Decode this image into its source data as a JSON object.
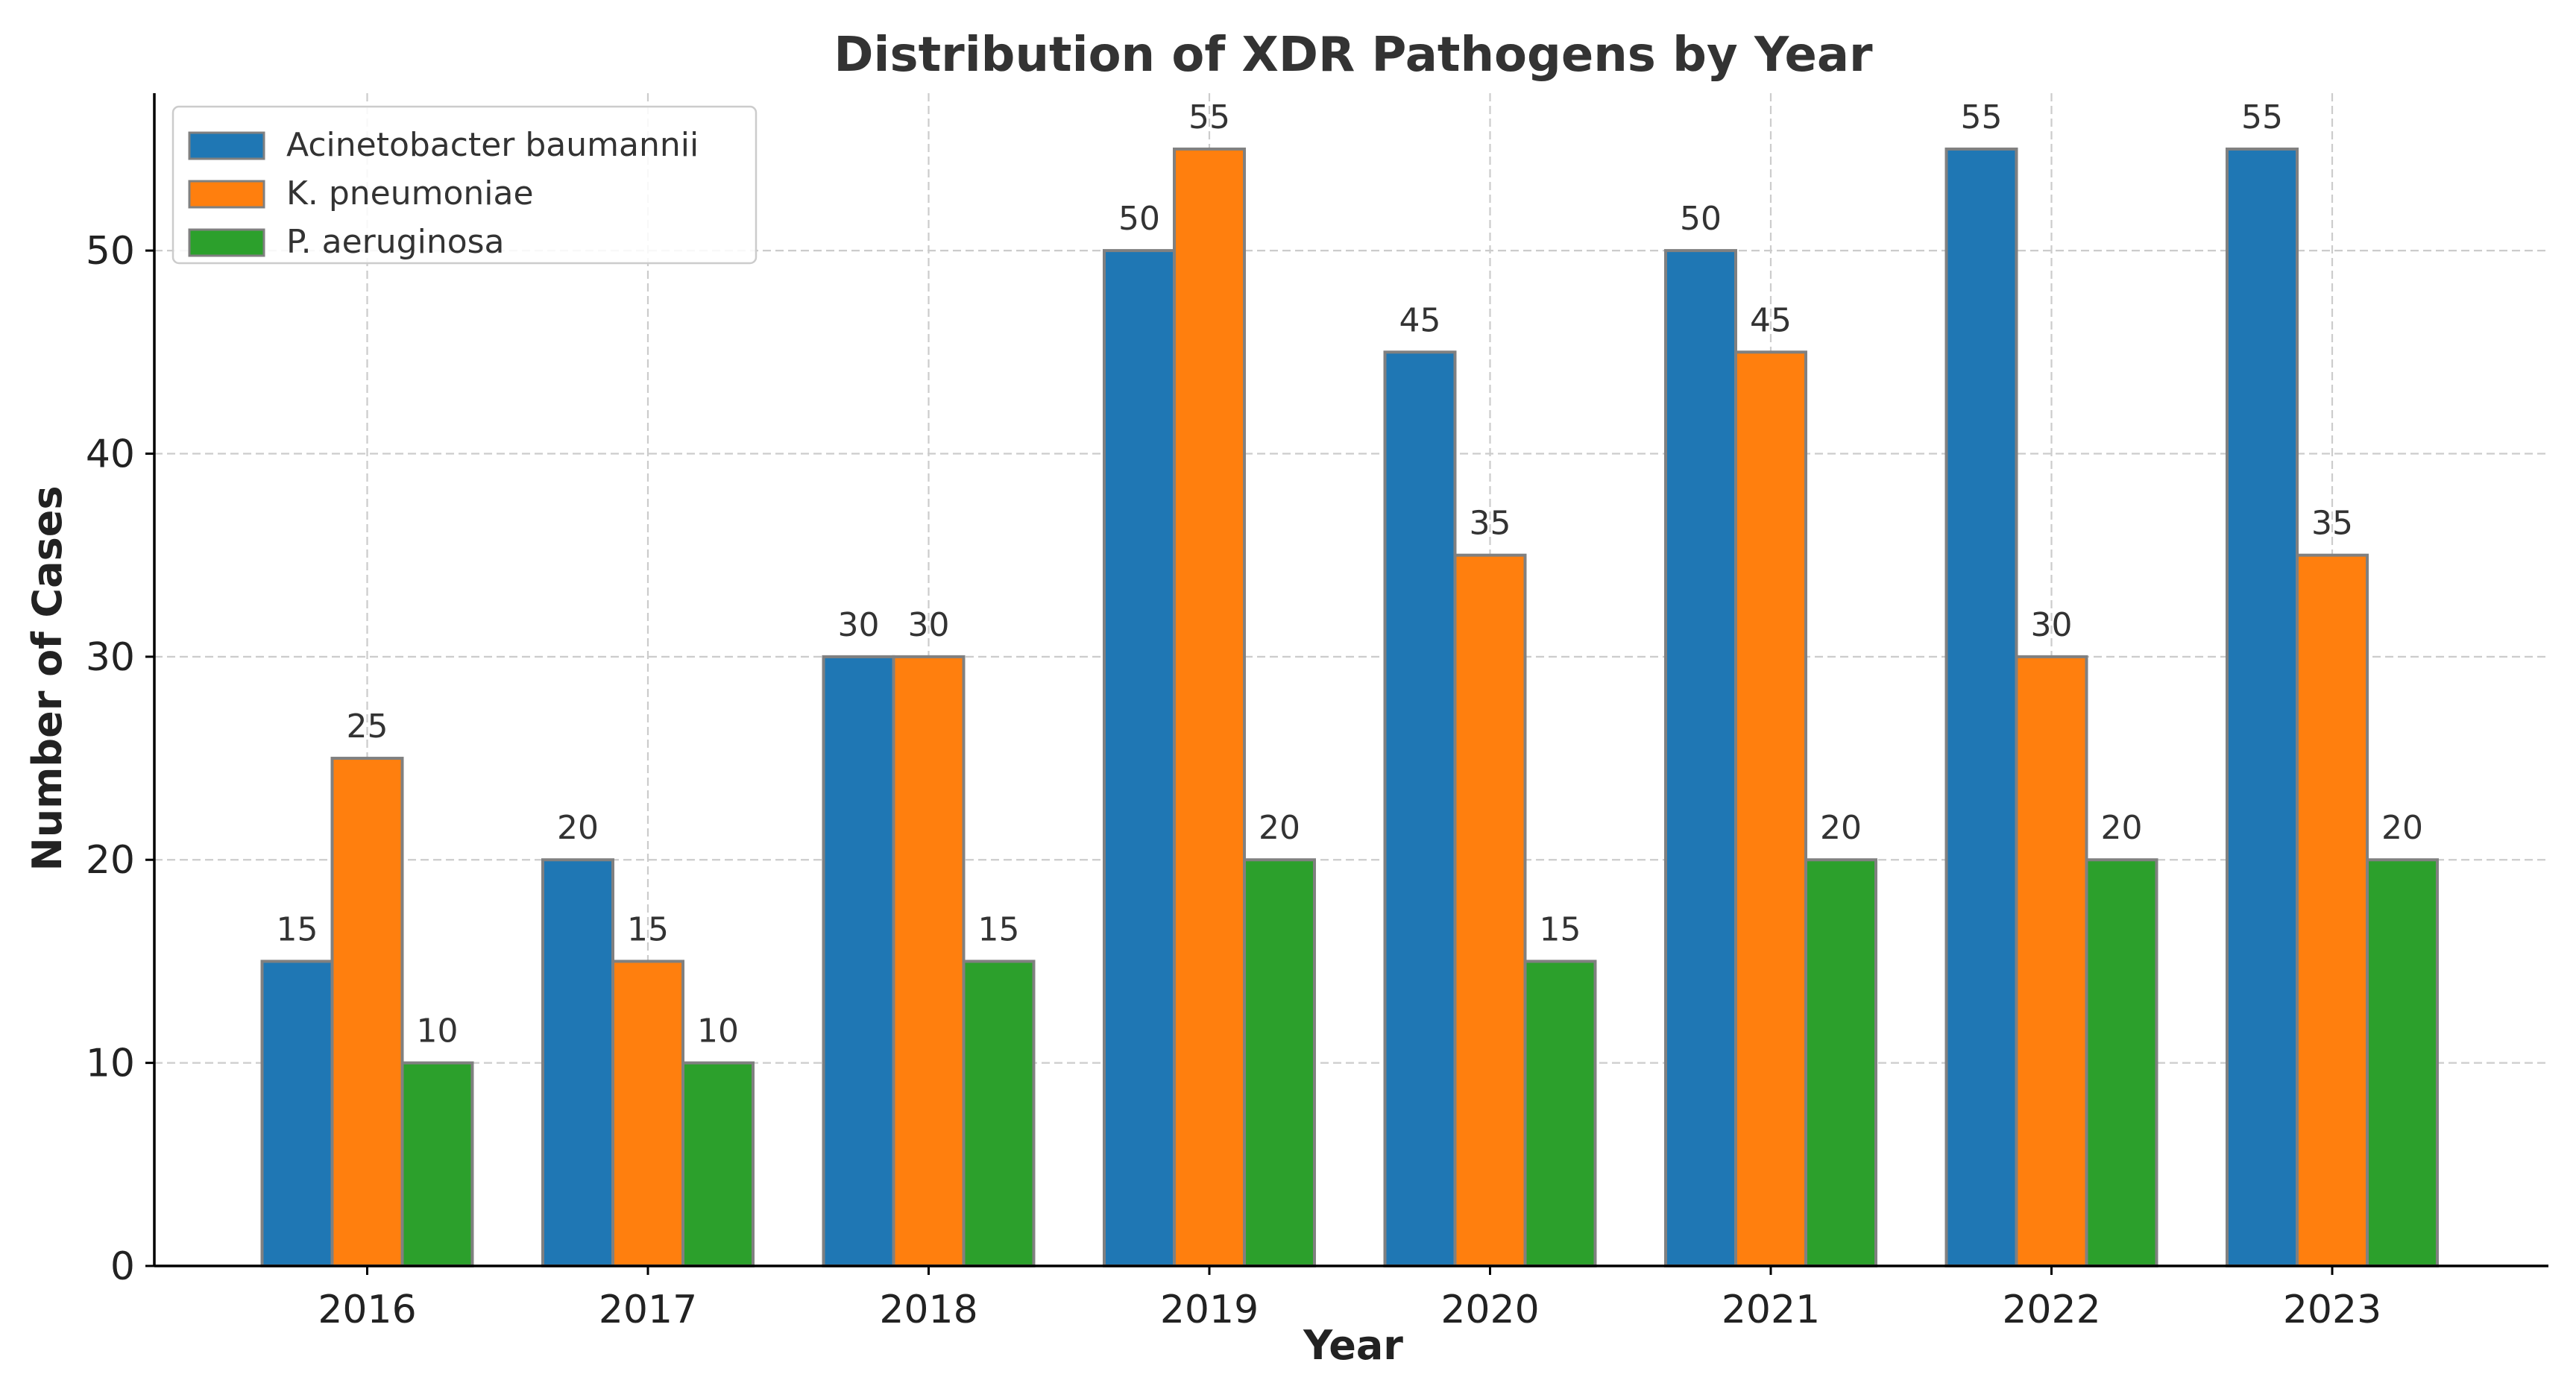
{
  "chart_data": {
    "type": "bar",
    "title": "Distribution of XDR Pathogens by Year",
    "xlabel": "Year",
    "ylabel": "Number of Cases",
    "categories": [
      "2016",
      "2017",
      "2018",
      "2019",
      "2020",
      "2021",
      "2022",
      "2023"
    ],
    "series": [
      {
        "name": "Acinetobacter baumannii",
        "color": "#1f77b4",
        "values": [
          15,
          20,
          30,
          50,
          45,
          50,
          55,
          55
        ]
      },
      {
        "name": "K. pneumoniae",
        "color": "#ff7f0e",
        "values": [
          25,
          15,
          30,
          55,
          35,
          45,
          30,
          35
        ]
      },
      {
        "name": "P. aeruginosa",
        "color": "#2ca02c",
        "values": [
          10,
          10,
          15,
          20,
          15,
          20,
          20,
          20
        ]
      }
    ],
    "ylim": [
      0,
      57.75
    ],
    "yticks": [
      0,
      10,
      20,
      30,
      40,
      50
    ],
    "grid": true,
    "legend_position": "top-left",
    "bar_edge_color": "#808080"
  }
}
